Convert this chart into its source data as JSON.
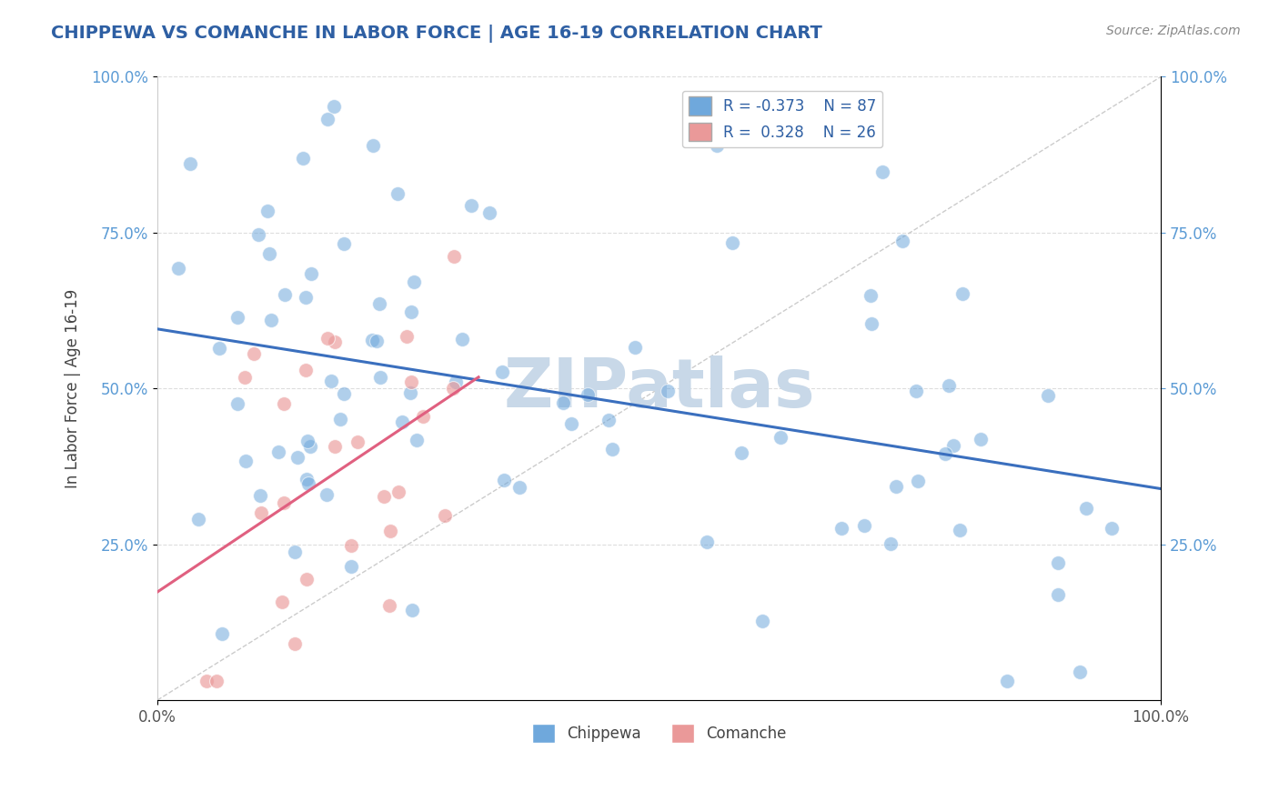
{
  "title": "CHIPPEWA VS COMANCHE IN LABOR FORCE | AGE 16-19 CORRELATION CHART",
  "source_text": "Source: ZipAtlas.com",
  "ylabel": "In Labor Force | Age 16-19",
  "chippewa_R": -0.373,
  "chippewa_N": 87,
  "comanche_R": 0.328,
  "comanche_N": 26,
  "chippewa_color": "#6fa8dc",
  "comanche_color": "#ea9999",
  "chippewa_line_color": "#3a6fbe",
  "comanche_line_color": "#e06080",
  "ref_line_color": "#cccccc",
  "watermark": "ZIPatlas",
  "watermark_color": "#c8d8e8",
  "legend_chippewa_label": "Chippewa",
  "legend_comanche_label": "Comanche",
  "legend_text_color": "#2e5fa3",
  "background_color": "#ffffff",
  "title_color": "#2e5fa3",
  "axis_tick_color": "#5b9bd5",
  "seed": 123
}
